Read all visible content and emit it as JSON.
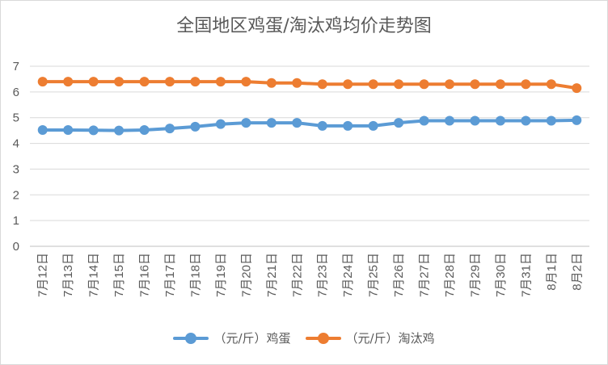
{
  "chart_data": {
    "type": "line",
    "title": "全国地区鸡蛋/淘汰鸡均价走势图",
    "categories": [
      "7月12日",
      "7月13日",
      "7月14日",
      "7月15日",
      "7月16日",
      "7月17日",
      "7月18日",
      "7月19日",
      "7月20日",
      "7月21日",
      "7月22日",
      "7月23日",
      "7月24日",
      "7月25日",
      "7月26日",
      "7月27日",
      "7月28日",
      "7月29日",
      "7月30日",
      "7月31日",
      "8月1日",
      "8月2日"
    ],
    "yticks": [
      "0",
      "1",
      "2",
      "3",
      "4",
      "5",
      "6",
      "7"
    ],
    "ylim": [
      0,
      7
    ],
    "grid": true,
    "legend_position": "bottom",
    "series": [
      {
        "name": "（元/斤）鸡蛋",
        "color": "#5b9bd5",
        "values": [
          4.52,
          4.52,
          4.51,
          4.5,
          4.52,
          4.58,
          4.65,
          4.75,
          4.8,
          4.8,
          4.8,
          4.68,
          4.68,
          4.68,
          4.8,
          4.88,
          4.88,
          4.88,
          4.88,
          4.88,
          4.88,
          4.9
        ]
      },
      {
        "name": "（元/斤）淘汰鸡",
        "color": "#ed7d31",
        "values": [
          6.4,
          6.4,
          6.4,
          6.4,
          6.4,
          6.4,
          6.4,
          6.4,
          6.4,
          6.35,
          6.35,
          6.3,
          6.3,
          6.3,
          6.3,
          6.3,
          6.3,
          6.3,
          6.3,
          6.3,
          6.3,
          6.15
        ]
      }
    ]
  }
}
